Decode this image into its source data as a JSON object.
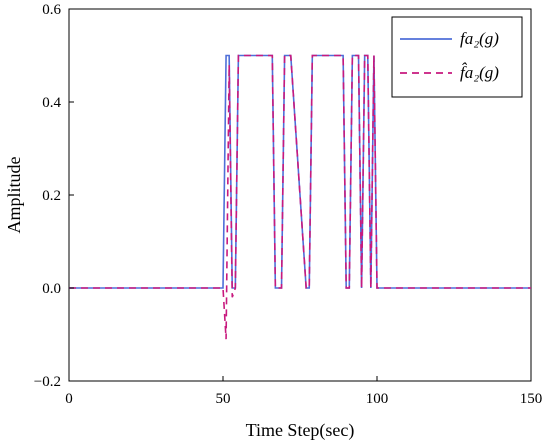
{
  "chart_data": {
    "type": "line",
    "xlabel": "Time Step(sec)",
    "ylabel": "Amplitude",
    "xlim": [
      0,
      150
    ],
    "ylim": [
      -0.2,
      0.6
    ],
    "xticks": [
      0,
      50,
      100,
      150
    ],
    "yticks": [
      -0.2,
      0.0,
      0.2,
      0.4,
      0.6
    ],
    "xtick_labels": [
      "0",
      "50",
      "100",
      "150"
    ],
    "ytick_labels": [
      "−0.2",
      "0.0",
      "0.2",
      "0.4",
      "0.6"
    ],
    "grid": false,
    "legend_position": "top-right",
    "series": [
      {
        "name": "fa₂(g)",
        "color": "#4f6fd8",
        "dash": "solid",
        "x": [
          0,
          50,
          51,
          52,
          53,
          54,
          55,
          66,
          67,
          69,
          70,
          72,
          77,
          78,
          79,
          89,
          90,
          91,
          92,
          94,
          95,
          96,
          97,
          98,
          99,
          100,
          150
        ],
        "y": [
          0,
          0,
          0.5,
          0.5,
          0,
          0,
          0.5,
          0.5,
          0,
          0,
          0.5,
          0.5,
          0,
          0,
          0.5,
          0.5,
          0,
          0,
          0.5,
          0.5,
          0,
          0.5,
          0.5,
          0,
          0.5,
          0,
          0
        ]
      },
      {
        "name": "f̂a₂(g)",
        "color": "#c8197e",
        "dash": "dashed",
        "x": [
          0,
          50,
          51,
          52,
          53,
          54,
          55,
          66,
          67,
          69,
          70,
          72,
          77,
          78,
          79,
          89,
          90,
          91,
          92,
          94,
          95,
          96,
          97,
          98,
          99,
          100,
          150
        ],
        "y": [
          0,
          0,
          -0.11,
          0.48,
          -0.02,
          0,
          0.5,
          0.5,
          0,
          0,
          0.5,
          0.5,
          0,
          0,
          0.5,
          0.5,
          0,
          0,
          0.5,
          0.5,
          0,
          0.5,
          0.5,
          0,
          0.5,
          0,
          0
        ]
      }
    ]
  }
}
